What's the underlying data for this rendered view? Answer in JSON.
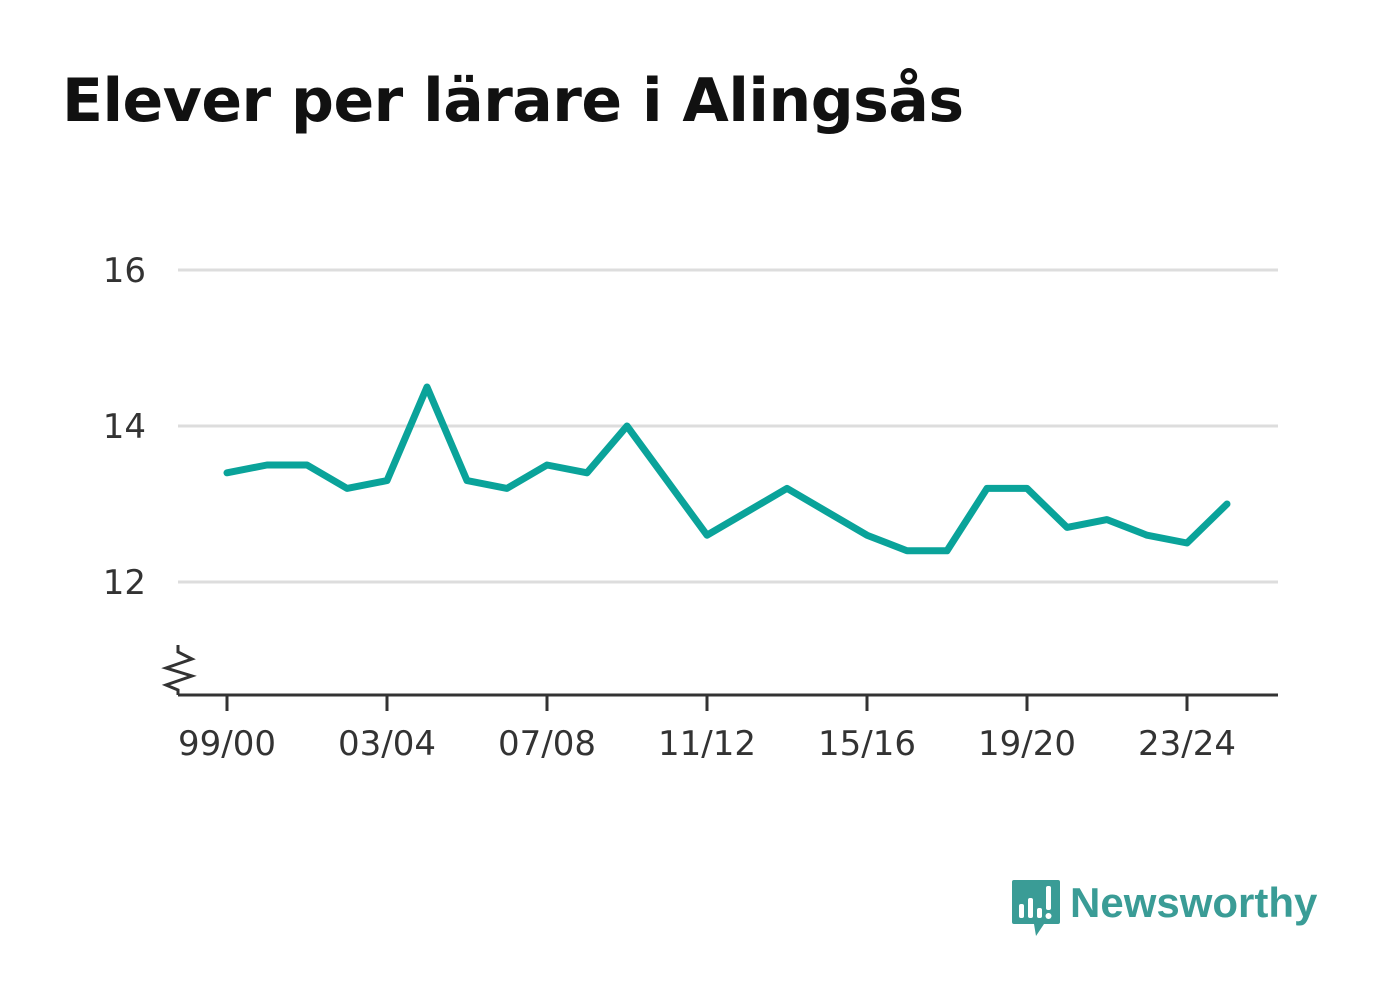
{
  "title": "Elever per lärare i Alingsås",
  "brand": {
    "name": "Newsworthy",
    "icon": "newsworthy-logo-icon",
    "color": "#3a9c96"
  },
  "chart_data": {
    "type": "line",
    "title": "Elever per lärare i Alingsås",
    "xlabel": "",
    "ylabel": "",
    "categories": [
      "99/00",
      "00/01",
      "01/02",
      "02/03",
      "03/04",
      "04/05",
      "05/06",
      "06/07",
      "07/08",
      "08/09",
      "09/10",
      "10/11",
      "11/12",
      "12/13",
      "13/14",
      "14/15",
      "15/16",
      "16/17",
      "17/18",
      "18/19",
      "19/20",
      "20/21",
      "21/22",
      "22/23",
      "23/24",
      "24/25"
    ],
    "x_tick_labels": [
      "99/00",
      "03/04",
      "07/08",
      "11/12",
      "15/16",
      "19/20",
      "23/24"
    ],
    "y_ticks": [
      12,
      14,
      16
    ],
    "ylim": [
      10.6,
      16
    ],
    "y_axis_break": true,
    "grid": true,
    "series": [
      {
        "color": "#0aa39a",
        "values": [
          13.4,
          13.5,
          13.5,
          13.2,
          13.3,
          14.5,
          13.3,
          13.2,
          13.5,
          13.4,
          14.0,
          13.3,
          12.6,
          12.9,
          13.2,
          12.9,
          12.6,
          12.4,
          12.4,
          13.2,
          13.2,
          12.7,
          12.8,
          12.6,
          12.5,
          13.0
        ]
      }
    ]
  }
}
